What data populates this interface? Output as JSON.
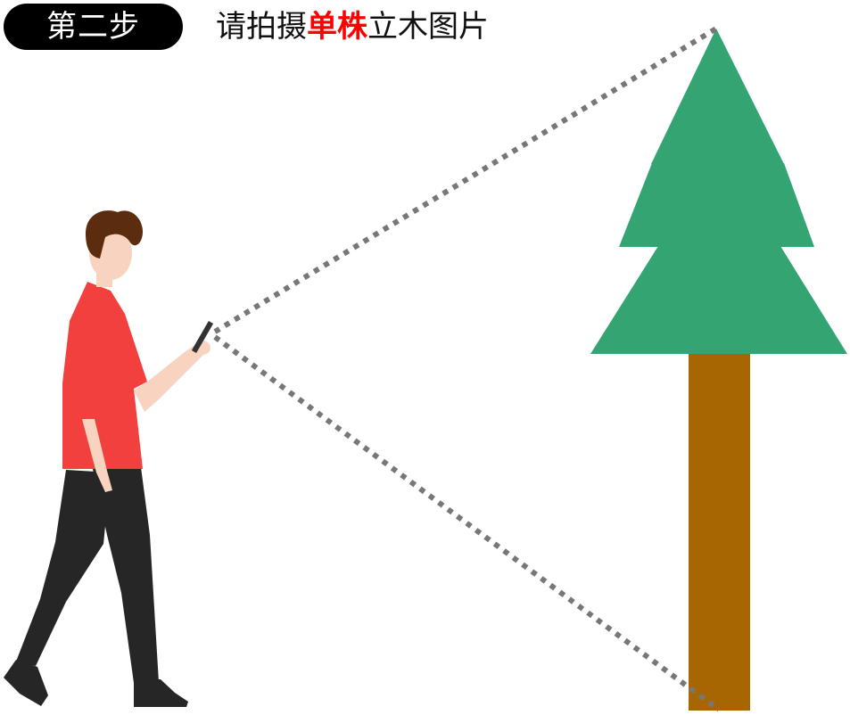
{
  "header": {
    "step_label": "第二步",
    "instruction_prefix": "请拍摄",
    "instruction_emphasis": "单株",
    "instruction_suffix": "立木图片"
  },
  "colors": {
    "badge_background": "#000000",
    "badge_text": "#ffffff",
    "instruction_text": "#111111",
    "emphasis_text": "#ff0000",
    "tree_foliage": "#34a572",
    "tree_trunk": "#a76602",
    "sight_line": "#777777",
    "person_shirt": "#f2403f",
    "person_pants": "#262626",
    "person_skin": "#f8d4c0",
    "person_hair": "#5b2c0d"
  },
  "icons": {
    "person": "person-holding-phone-icon",
    "tree": "pine-tree-icon",
    "phone": "phone-icon"
  }
}
